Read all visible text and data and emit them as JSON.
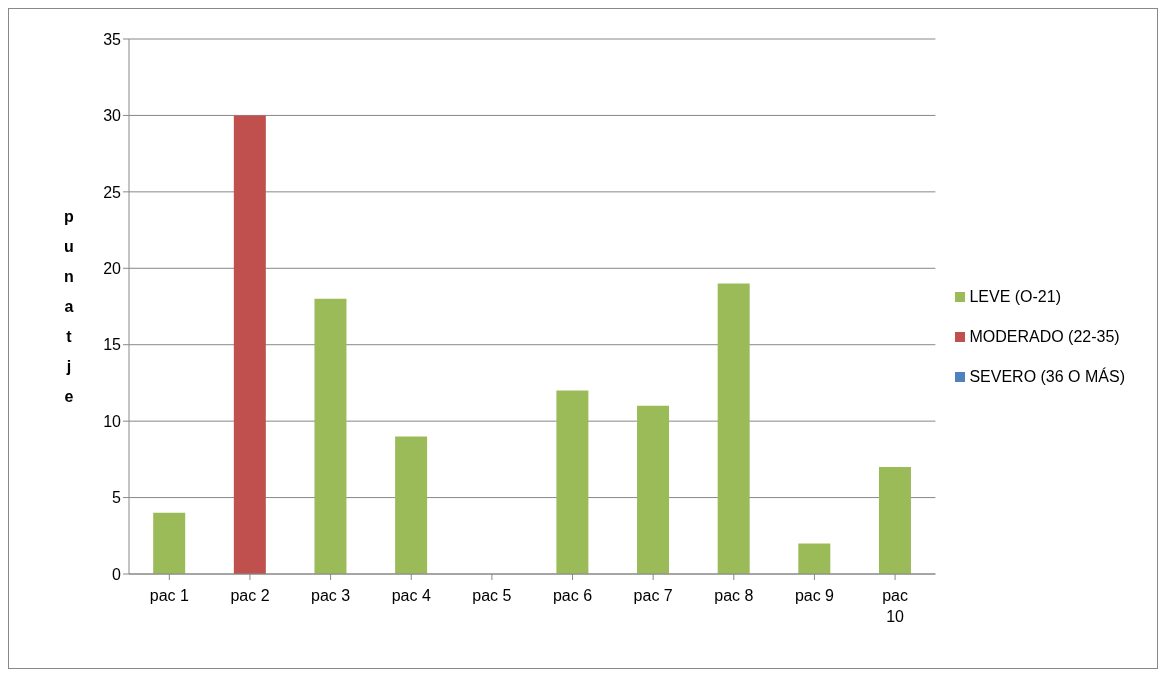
{
  "chart_data": {
    "type": "bar",
    "ylabel": "punatje",
    "categories": [
      "pac 1",
      "pac 2",
      "pac 3",
      "pac 4",
      "pac 5",
      "pac 6",
      "pac 7",
      "pac 8",
      "pac 9",
      "pac 10"
    ],
    "series": [
      {
        "name": "LEVE (O-21)",
        "color": "#9bbb59",
        "values": [
          4,
          null,
          18,
          9,
          0,
          12,
          11,
          19,
          2,
          7
        ]
      },
      {
        "name": "MODERADO (22-35)",
        "color": "#c0504d",
        "values": [
          null,
          30,
          null,
          null,
          null,
          null,
          null,
          null,
          null,
          null
        ]
      },
      {
        "name": "SEVERO (36 O MÁS)",
        "color": "#4f81bd",
        "values": [
          null,
          null,
          null,
          null,
          null,
          null,
          null,
          null,
          null,
          null
        ]
      }
    ],
    "stacked": true,
    "ylim": [
      0,
      35
    ],
    "yticks": [
      0,
      5,
      10,
      15,
      20,
      25,
      30,
      35
    ],
    "grid": "y",
    "legend": "right"
  }
}
